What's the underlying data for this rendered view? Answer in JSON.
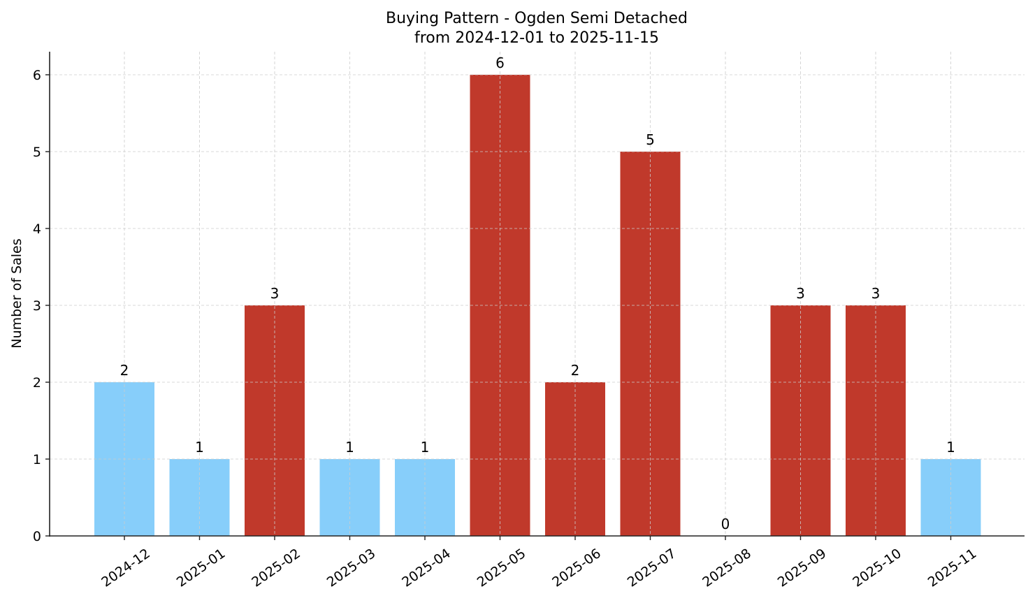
{
  "chart_data": {
    "type": "bar",
    "title": "Buying Pattern - Ogden Semi Detached",
    "subtitle": "from 2024-12-01 to 2025-11-15",
    "xlabel": "",
    "ylabel": "Number of Sales",
    "categories": [
      "2024-12",
      "2025-01",
      "2025-02",
      "2025-03",
      "2025-04",
      "2025-05",
      "2025-06",
      "2025-07",
      "2025-08",
      "2025-09",
      "2025-10",
      "2025-11"
    ],
    "values": [
      2,
      1,
      3,
      1,
      1,
      6,
      2,
      5,
      0,
      3,
      3,
      1
    ],
    "bar_colors": [
      "#87CEFA",
      "#87CEFA",
      "#C0392B",
      "#87CEFA",
      "#87CEFA",
      "#C0392B",
      "#C0392B",
      "#C0392B",
      "#C0392B",
      "#C0392B",
      "#C0392B",
      "#87CEFA"
    ],
    "color_legend": {
      "low": "#87CEFA",
      "high": "#C0392B"
    },
    "ylim": [
      0,
      6.3
    ],
    "yticks": [
      0,
      1,
      2,
      3,
      4,
      5,
      6
    ],
    "grid": true,
    "grid_style": "dashed",
    "legend": "none",
    "data_labels": true,
    "xtick_rotation": 35
  }
}
